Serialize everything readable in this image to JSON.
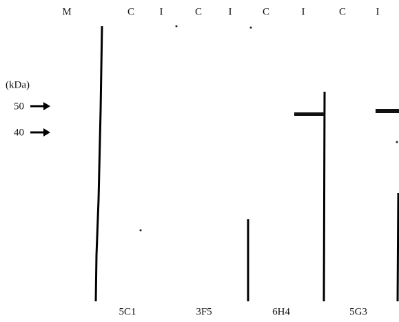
{
  "lanes": [
    "M",
    "C",
    "I",
    "C",
    "I",
    "C",
    "I",
    "C",
    "I"
  ],
  "marker_unit": "(kDa)",
  "markers": [
    50,
    40
  ],
  "antibodies": [
    "5C1",
    "3F5",
    "6H4",
    "5G3"
  ]
}
